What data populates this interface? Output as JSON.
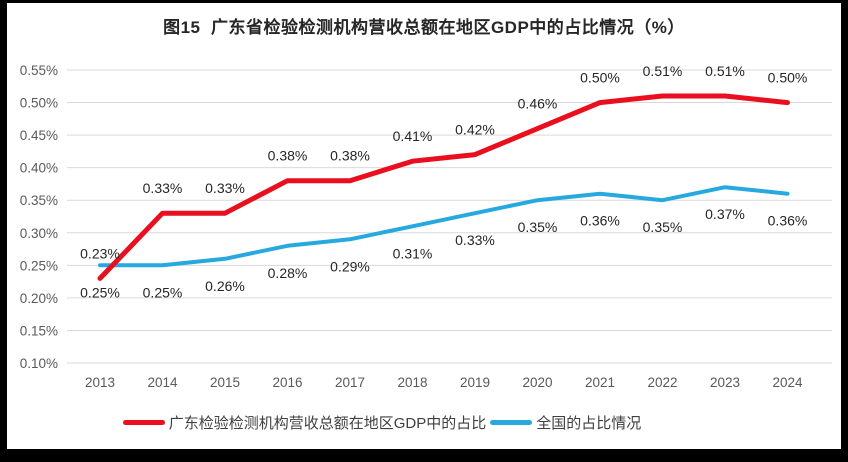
{
  "chart_data": {
    "type": "line",
    "title": "图15  广东省检验检测机构营收总额在地区GDP中的占比情况（%）",
    "categories": [
      "2013",
      "2014",
      "2015",
      "2016",
      "2017",
      "2018",
      "2019",
      "2020",
      "2021",
      "2022",
      "2023",
      "2024"
    ],
    "series": [
      {
        "name": "广东检验检测机构营收总额在地区GDP中的占比",
        "color": "#E90F1E",
        "stroke_width": 5,
        "label_position": "above",
        "values": [
          0.23,
          0.33,
          0.33,
          0.38,
          0.38,
          0.41,
          0.42,
          0.46,
          0.5,
          0.51,
          0.51,
          0.5
        ],
        "labels": [
          "0.23%",
          "0.33%",
          "0.33%",
          "0.38%",
          "0.38%",
          "0.41%",
          "0.42%",
          "0.46%",
          "0.50%",
          "0.51%",
          "0.51%",
          "0.50%"
        ]
      },
      {
        "name": "全国的占比情况",
        "color": "#27A9DF",
        "stroke_width": 4,
        "label_position": "below",
        "values": [
          0.25,
          0.25,
          0.26,
          0.28,
          0.29,
          0.31,
          0.33,
          0.35,
          0.36,
          0.35,
          0.37,
          0.36
        ],
        "labels": [
          "0.25%",
          "0.25%",
          "0.26%",
          "0.28%",
          "0.29%",
          "0.31%",
          "0.33%",
          "0.35%",
          "0.36%",
          "0.35%",
          "0.37%",
          "0.36%"
        ]
      }
    ],
    "ylim": [
      0.1,
      0.55
    ],
    "ytick_values": [
      0.1,
      0.15,
      0.2,
      0.25,
      0.3,
      0.35,
      0.4,
      0.45,
      0.5,
      0.55
    ],
    "ytick_labels": [
      "0.10%",
      "0.15%",
      "0.20%",
      "0.25%",
      "0.30%",
      "0.35%",
      "0.40%",
      "0.45%",
      "0.50%",
      "0.55%"
    ],
    "grid": "horizontal",
    "legend_position": "bottom",
    "colors": {
      "gridline": "#D9D9D9",
      "axis_tick_text": "#595959",
      "data_label_text": "#262626",
      "title_text": "#262626",
      "frame_border": "#000000",
      "background": "#FFFFFF"
    }
  }
}
